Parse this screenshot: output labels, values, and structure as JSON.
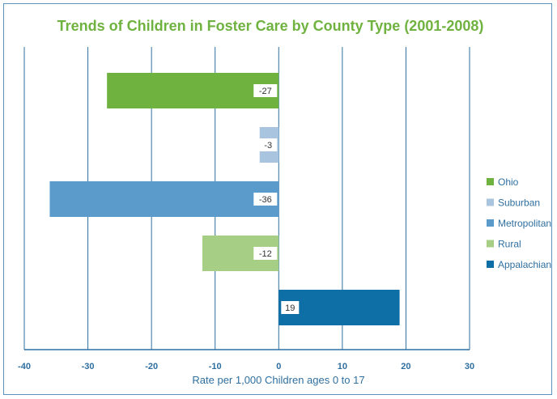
{
  "chart_data": {
    "type": "bar",
    "orientation": "horizontal",
    "title": "Trends of Children in Foster Care by County Type (2001-2008)",
    "xlabel": "Rate per 1,000 Children ages 0 to 17",
    "ylabel": "",
    "xlim": [
      -40,
      30
    ],
    "ticks": [
      "-40",
      "-30",
      "-20",
      "-10",
      "0",
      "10",
      "20",
      "30"
    ],
    "tick_values": [
      -40,
      -30,
      -20,
      -10,
      0,
      10,
      20,
      30
    ],
    "grid": "vertical",
    "legend_position": "right",
    "categories": [
      "Ohio",
      "Suburban",
      "Metropolitan",
      "Rural",
      "Appalachian"
    ],
    "values": [
      -27,
      -3,
      -36,
      -12,
      19
    ],
    "data_labels": [
      "-27",
      "-3",
      "-36",
      "-12",
      "19"
    ],
    "colors": [
      "#6fb23f",
      "#a8c4de",
      "#5b9bcc",
      "#a6cf85",
      "#0e6ea6"
    ]
  },
  "theme": {
    "title_color": "#6fb23f",
    "axis_color": "#2f6f9f",
    "xlabel_color": "#2f6f9f",
    "legend_text_color": "#2f6f9f"
  }
}
